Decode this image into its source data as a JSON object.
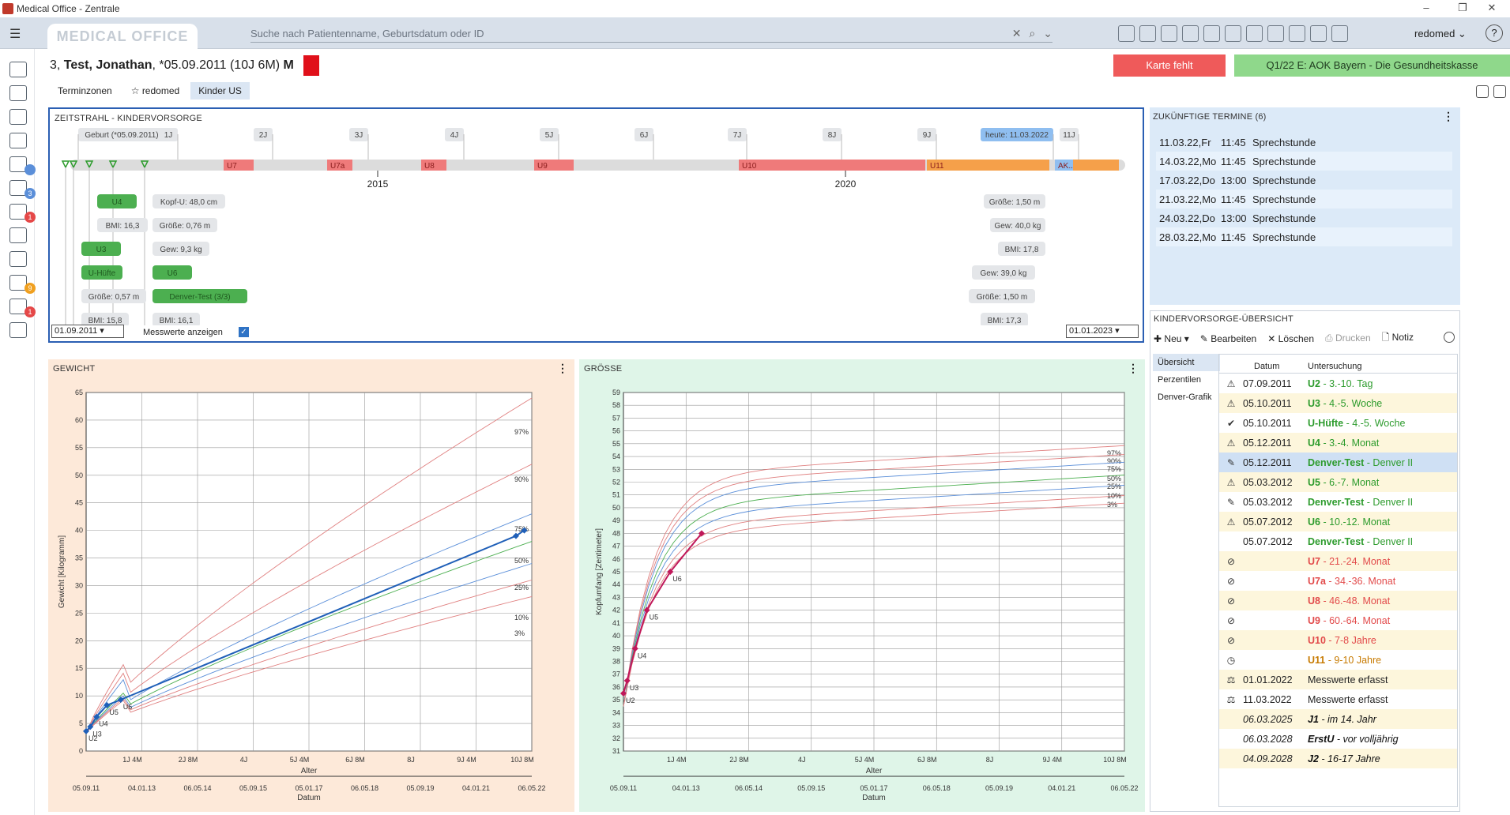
{
  "window": {
    "title": "Medical Office - Zentrale",
    "controls": [
      "–",
      "❐",
      "✕"
    ]
  },
  "topbar": {
    "logo": "MEDICAL OFFICE",
    "search_placeholder": "Suche nach Patientenname, Geburtsdatum oder ID",
    "user": "redomed",
    "help": "?"
  },
  "patient": {
    "prefix": "3,",
    "name": "Test, Jonathan",
    "info": ", *05.09.2011 (10J 6M)",
    "sex": "M",
    "status_color": "#e0101a"
  },
  "buttons": {
    "karte": "Karte fehlt",
    "kasse": "Q1/22 E: AOK Bayern - Die Gesundheitskasse"
  },
  "tabs": [
    {
      "label": "Terminzonen"
    },
    {
      "label": "redomed"
    },
    {
      "label": "Kinder US"
    }
  ],
  "zeitstrahl": {
    "title": "ZEITSTRAHL - KINDERVORSORGE",
    "age_labels": [
      "Geburt (*05.09.2011)",
      "1J",
      "2J",
      "3J",
      "4J",
      "5J",
      "6J",
      "7J",
      "8J",
      "9J",
      "heute: 11.03.2022",
      "11J"
    ],
    "exams": [
      {
        "label": "U7",
        "color": "#ef7a7a"
      },
      {
        "label": "U7a",
        "color": "#ef7a7a"
      },
      {
        "label": "U8",
        "color": "#ef7a7a"
      },
      {
        "label": "U9",
        "color": "#ef7a7a"
      },
      {
        "label": "U10",
        "color": "#ef7a7a"
      },
      {
        "label": "U11",
        "color": "#f5a04a"
      },
      {
        "label": "AK...",
        "color": "#8fbef0"
      }
    ],
    "years": [
      "2015",
      "2020"
    ],
    "chips_left": [
      "U4",
      "BMI: 16,3",
      "U3",
      "U-Hüfte",
      "Größe: 0,57 m",
      "BMI: 15,8",
      "Kopf-U: 48,0 cm",
      "Größe: 0,76 m",
      "Gew: 9,3 kg",
      "U6",
      "Denver-Test (3/3)",
      "BMI: 16,1"
    ],
    "chips_right": [
      "Größe: 1,50 m",
      "Gew: 40,0 kg",
      "BMI: 17,8",
      "Gew: 39,0 kg",
      "Größe: 1,50 m",
      "BMI: 17,3"
    ],
    "date_from": "01.09.2011",
    "date_to": "01.01.2023",
    "messwerte": "Messwerte anzeigen"
  },
  "termine": {
    "title": "ZUKÜNFTIGE TERMINE (6)",
    "items": [
      {
        "date": "11.03.22,Fr",
        "time": "11:45",
        "type": "Sprechstunde"
      },
      {
        "date": "14.03.22,Mo",
        "time": "11:45",
        "type": "Sprechstunde"
      },
      {
        "date": "17.03.22,Do",
        "time": "13:00",
        "type": "Sprechstunde"
      },
      {
        "date": "21.03.22,Mo",
        "time": "11:45",
        "type": "Sprechstunde"
      },
      {
        "date": "24.03.22,Do",
        "time": "13:00",
        "type": "Sprechstunde"
      },
      {
        "date": "28.03.22,Mo",
        "time": "11:45",
        "type": "Sprechstunde"
      }
    ]
  },
  "kv": {
    "title": "KINDERVORSORGE-ÜBERSICHT",
    "toolbar": {
      "neu": "Neu",
      "bearbeiten": "Bearbeiten",
      "loeschen": "Löschen",
      "drucken": "Drucken",
      "notiz": "Notiz"
    },
    "side": [
      "Übersicht",
      "Perzentilen",
      "Denver-Grafik"
    ],
    "headers": {
      "datum": "Datum",
      "untersuchung": "Untersuchung"
    },
    "rows": [
      {
        "icon": "⚠",
        "date": "07.09.2011",
        "code": "U2",
        "desc": " - 3.-10. Tag",
        "cls": "g"
      },
      {
        "icon": "⚠",
        "date": "05.10.2011",
        "code": "U3",
        "desc": " - 4.-5. Woche",
        "cls": "g"
      },
      {
        "icon": "✔",
        "date": "05.10.2011",
        "code": "U-Hüfte",
        "desc": " - 4.-5. Woche",
        "cls": "g"
      },
      {
        "icon": "⚠",
        "date": "05.12.2011",
        "code": "U4",
        "desc": " - 3.-4. Monat",
        "cls": "g"
      },
      {
        "icon": "✎",
        "date": "05.12.2011",
        "code": "Denver-Test",
        "desc": " - Denver II",
        "cls": "g"
      },
      {
        "icon": "⚠",
        "date": "05.03.2012",
        "code": "U5",
        "desc": " - 6.-7. Monat",
        "cls": "g"
      },
      {
        "icon": "✎",
        "date": "05.03.2012",
        "code": "Denver-Test",
        "desc": " - Denver II",
        "cls": "g"
      },
      {
        "icon": "⚠",
        "date": "05.07.2012",
        "code": "U6",
        "desc": " - 10.-12. Monat",
        "cls": "g"
      },
      {
        "icon": "",
        "date": "05.07.2012",
        "code": "Denver-Test",
        "desc": " - Denver II",
        "cls": "g"
      },
      {
        "icon": "⊘",
        "date": "",
        "code": "U7",
        "desc": " - 21.-24. Monat",
        "cls": "r"
      },
      {
        "icon": "⊘",
        "date": "",
        "code": "U7a",
        "desc": " - 34.-36. Monat",
        "cls": "r"
      },
      {
        "icon": "⊘",
        "date": "",
        "code": "U8",
        "desc": " - 46.-48. Monat",
        "cls": "r"
      },
      {
        "icon": "⊘",
        "date": "",
        "code": "U9",
        "desc": " - 60.-64. Monat",
        "cls": "r"
      },
      {
        "icon": "⊘",
        "date": "",
        "code": "U10",
        "desc": " - 7-8 Jahre",
        "cls": "r"
      },
      {
        "icon": "◷",
        "date": "",
        "code": "U11",
        "desc": " - 9-10 Jahre",
        "cls": "o"
      },
      {
        "icon": "⚖",
        "date": "01.01.2022",
        "code": "",
        "desc": "Messwerte erfasst",
        "cls": "n"
      },
      {
        "icon": "⚖",
        "date": "11.03.2022",
        "code": "",
        "desc": "Messwerte erfasst",
        "cls": "n"
      },
      {
        "icon": "",
        "date": "06.03.2025",
        "code": "J1",
        "desc": " - im 14. Jahr",
        "cls": "k"
      },
      {
        "icon": "",
        "date": "06.03.2028",
        "code": "ErstU",
        "desc": " - vor volljährig",
        "cls": "k"
      },
      {
        "icon": "",
        "date": "04.09.2028",
        "code": "J2",
        "desc": " - 16-17 Jahre",
        "cls": "k"
      }
    ]
  },
  "chart_data": [
    {
      "type": "line",
      "title": "GEWICHT",
      "ylabel": "Gewicht [Kilogramm]",
      "xlabel": "Alter",
      "xlabel2": "Datum",
      "ylim": [
        0,
        65
      ],
      "yticks": [
        0,
        5,
        10,
        15,
        20,
        25,
        30,
        35,
        40,
        45,
        50,
        55,
        60,
        65
      ],
      "age_ticks": [
        "1J 4M",
        "2J 8M",
        "4J",
        "5J 4M",
        "6J 8M",
        "8J",
        "9J 4M",
        "10J 8M"
      ],
      "date_ticks": [
        "05.09.11",
        "04.01.13",
        "06.05.14",
        "05.09.15",
        "05.01.17",
        "06.05.18",
        "05.09.19",
        "04.01.21",
        "06.05.22"
      ],
      "percentiles": [
        "97%",
        "90%",
        "75%",
        "50%",
        "25%",
        "10%",
        "3%"
      ],
      "series": [
        {
          "name": "Patient",
          "points": [
            [
              0.0,
              3.6
            ],
            [
              0.1,
              4.4
            ],
            [
              0.25,
              6.2
            ],
            [
              0.5,
              8.3
            ],
            [
              0.83,
              9.3
            ],
            [
              10.32,
              39.0
            ],
            [
              10.52,
              40.0
            ]
          ],
          "labels": [
            "U2",
            "U3",
            "U4",
            "U5",
            "U6"
          ]
        }
      ]
    },
    {
      "type": "line",
      "title": "GRÖSSE",
      "ylabel": "Kopfumfang [Zentimeter]",
      "xlabel": "Alter",
      "xlabel2": "Datum",
      "ylim": [
        31,
        59
      ],
      "yticks": [
        31,
        32,
        33,
        34,
        35,
        36,
        37,
        38,
        39,
        40,
        41,
        42,
        43,
        44,
        45,
        46,
        47,
        48,
        49,
        50,
        51,
        52,
        53,
        54,
        55,
        56,
        57,
        58,
        59
      ],
      "age_ticks": [
        "1J 4M",
        "2J 8M",
        "4J",
        "5J 4M",
        "6J 8M",
        "8J",
        "9J 4M",
        "10J 8M"
      ],
      "date_ticks": [
        "05.09.11",
        "04.01.13",
        "06.05.14",
        "05.09.15",
        "05.01.17",
        "06.05.18",
        "05.09.19",
        "04.01.21",
        "06.05.22"
      ],
      "percentiles": [
        "97%",
        "90%",
        "75%",
        "50%",
        "25%",
        "10%",
        "3%"
      ],
      "series": [
        {
          "name": "Patient",
          "points": [
            [
              0.0,
              35.5
            ],
            [
              0.08,
              36.5
            ],
            [
              0.25,
              39.0
            ],
            [
              0.5,
              42.0
            ],
            [
              1.0,
              45.0
            ],
            [
              1.67,
              48.0
            ]
          ],
          "labels": [
            "U2",
            "U3",
            "U4",
            "U5",
            "U6"
          ]
        }
      ]
    }
  ]
}
